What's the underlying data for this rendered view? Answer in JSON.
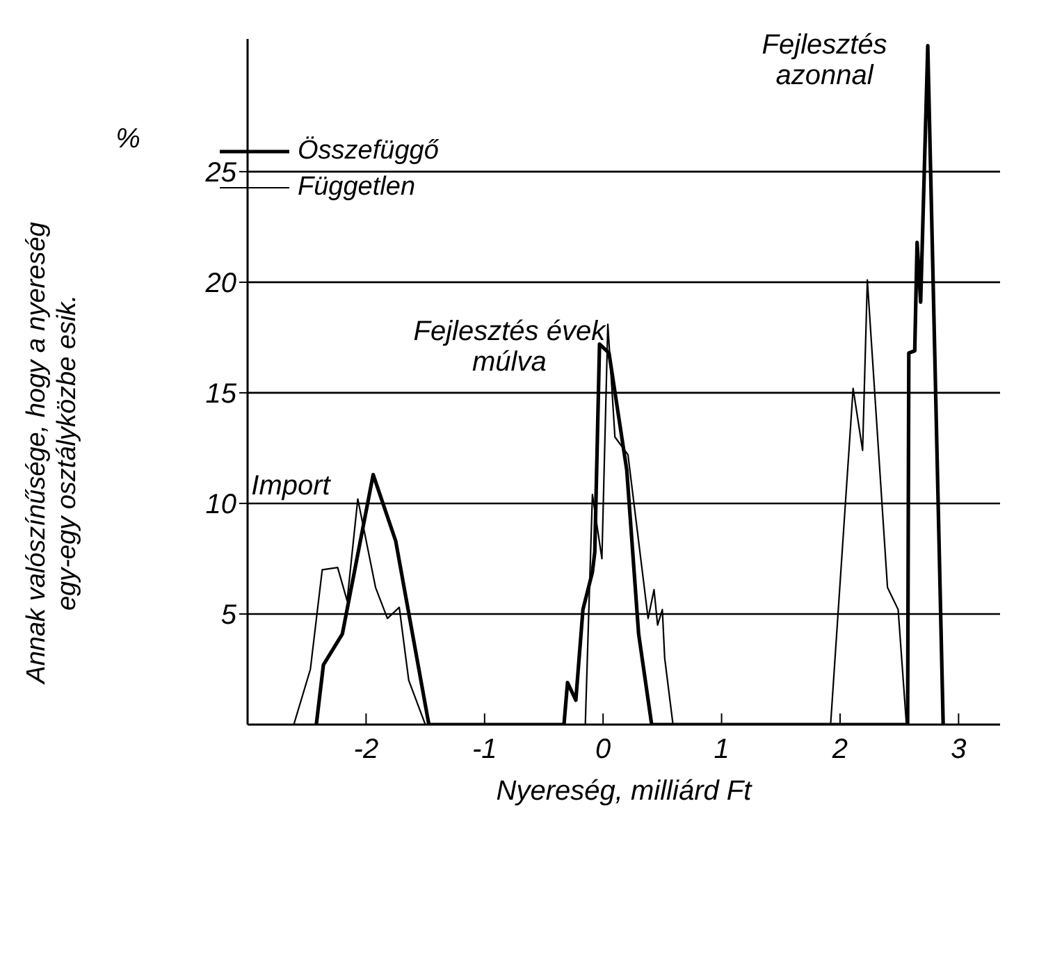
{
  "chart_data": {
    "type": "line",
    "xlabel": "Nyereség, milliárd Ft",
    "ylabel": "Annak valószínűsége, hogy a nyereség egy-egy osztályközbe esik.",
    "annotations": [
      "%",
      "Import",
      "Fejlesztés évek múlva",
      "Fejlesztés azonnal"
    ],
    "xlim": [
      -3,
      3.35
    ],
    "xticks": [
      -2,
      -1,
      0,
      1,
      2,
      3
    ],
    "ylim": [
      0,
      31
    ],
    "yticks": [
      5,
      10,
      15,
      20,
      25
    ],
    "grid": "y",
    "legend": "top left",
    "marker": "none",
    "line_style": "solid",
    "series": [
      {
        "name": "Összefüggő",
        "color": "#000000",
        "x": [
          -2.42,
          -2.36,
          -2.2,
          -1.94,
          -1.75,
          -1.47,
          -0.33,
          -0.3,
          -0.23,
          -0.17,
          -0.09,
          -0.07,
          -0.03,
          0.05,
          0.2,
          0.3,
          0.41,
          2.57,
          2.58,
          2.63,
          2.65,
          2.68,
          2.74,
          2.87
        ],
        "values": [
          0,
          2.7,
          4.1,
          11.3,
          8.3,
          0,
          0,
          1.9,
          1.1,
          5.2,
          6.9,
          7.8,
          17.2,
          16.8,
          11.5,
          4.1,
          0,
          0,
          16.8,
          16.9,
          21.8,
          19.1,
          30.7,
          0
        ]
      },
      {
        "name": "Független",
        "color": "#000000",
        "x": [
          -2.61,
          -2.47,
          -2.37,
          -2.24,
          -2.16,
          -2.07,
          -1.92,
          -1.82,
          -1.72,
          -1.64,
          -1.5,
          -0.15,
          -0.09,
          -0.01,
          0.04,
          0.1,
          0.21,
          0.38,
          0.43,
          0.46,
          0.5,
          0.52,
          0.59,
          1.92,
          2.11,
          2.19,
          2.23,
          2.4,
          2.49,
          2.56
        ],
        "values": [
          0,
          2.5,
          7,
          7.1,
          5.6,
          10.2,
          6.2,
          4.8,
          5.3,
          2,
          0,
          0,
          10.4,
          7.5,
          18.1,
          13,
          12.2,
          4.8,
          6.1,
          4.5,
          5.2,
          3,
          0,
          0,
          15.2,
          12.4,
          20.1,
          6.2,
          5.2,
          0
        ]
      }
    ]
  }
}
